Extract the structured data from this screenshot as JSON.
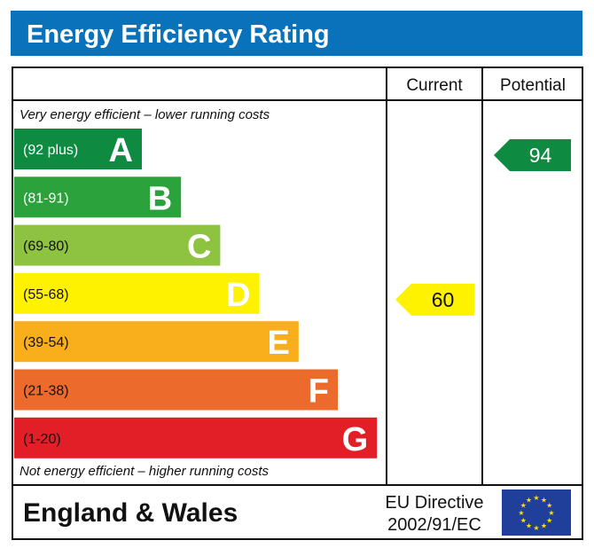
{
  "title": "Energy Efficiency Rating",
  "colors": {
    "title_bg": "#0a72ba",
    "eu_flag": "#1f3f9a",
    "eu_stars": "#ffdd00"
  },
  "chart_data": {
    "type": "bar",
    "columns": {
      "current": "Current",
      "potential": "Potential"
    },
    "top_note": "Very energy efficient – lower running costs",
    "bottom_note": "Not energy efficient – higher running costs",
    "bands": [
      {
        "letter": "A",
        "range": "(92 plus)",
        "color": "#0f8a41",
        "range_text_color": "#ffffff"
      },
      {
        "letter": "B",
        "range": "(81-91)",
        "color": "#2ba23b",
        "range_text_color": "#ffffff"
      },
      {
        "letter": "C",
        "range": "(69-80)",
        "color": "#8dc341",
        "range_text_color": "#111111"
      },
      {
        "letter": "D",
        "range": "(55-68)",
        "color": "#fff200",
        "range_text_color": "#111111"
      },
      {
        "letter": "E",
        "range": "(39-54)",
        "color": "#f9ae1c",
        "range_text_color": "#111111"
      },
      {
        "letter": "F",
        "range": "(21-38)",
        "color": "#ec6a2c",
        "range_text_color": "#111111"
      },
      {
        "letter": "G",
        "range": "(1-20)",
        "color": "#e21f26",
        "range_text_color": "#111111"
      }
    ],
    "current": {
      "value": 60,
      "band": "D",
      "color": "#fff200",
      "text_color": "#111111"
    },
    "potential": {
      "value": 94,
      "band": "A",
      "color": "#0f8a41",
      "text_color": "#ffffff"
    }
  },
  "footer": {
    "region": "England & Wales",
    "directive_line1": "EU Directive",
    "directive_line2": "2002/91/EC"
  }
}
